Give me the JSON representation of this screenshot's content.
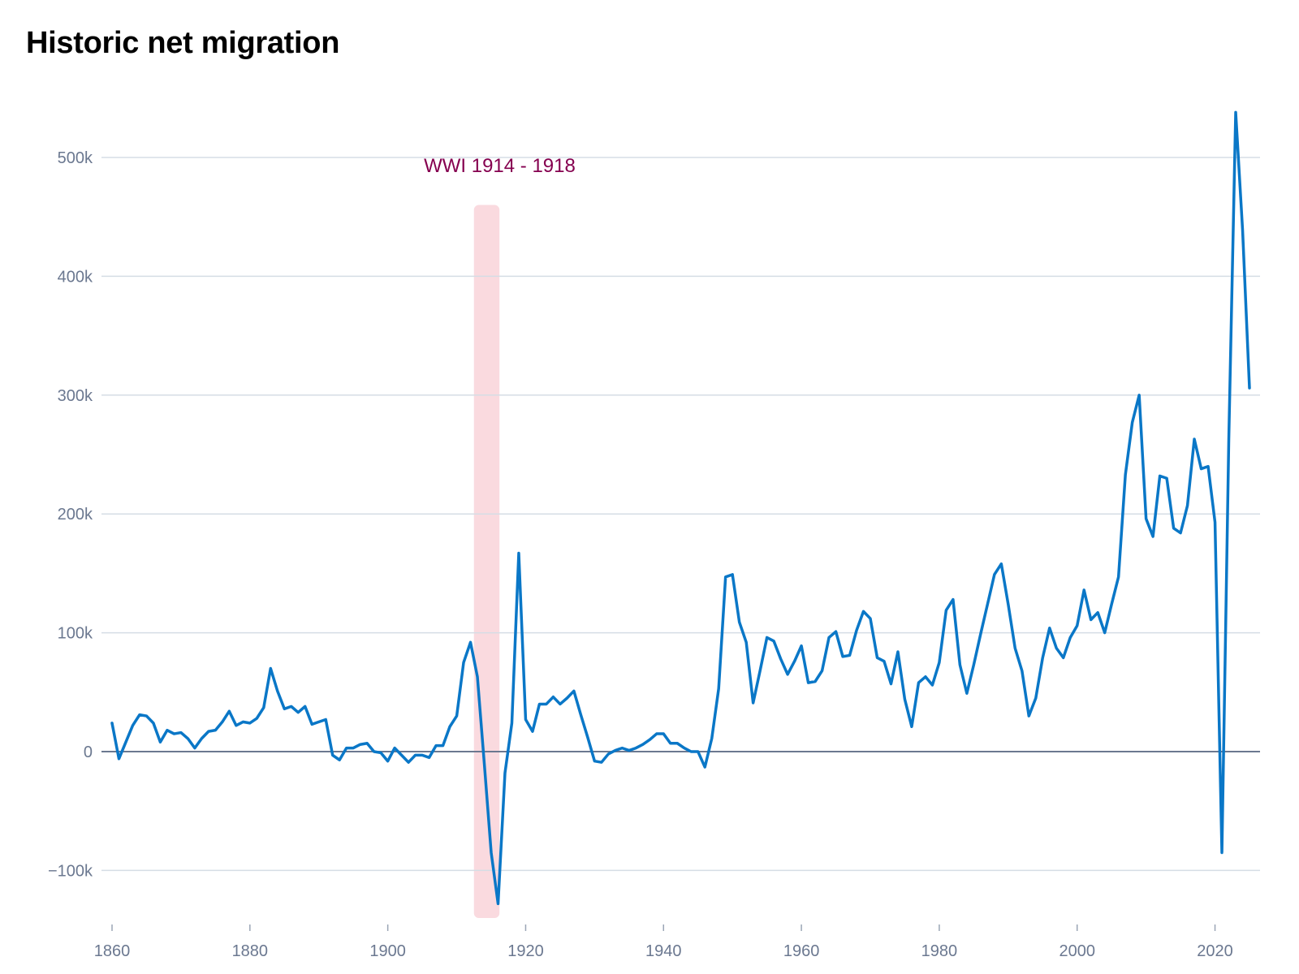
{
  "chart_data": {
    "type": "line",
    "title": "Historic net migration",
    "xlabel": "",
    "ylabel": "",
    "xlim": [
      1860,
      2025
    ],
    "ylim": [
      -140000,
      550000
    ],
    "x_ticks": [
      1860,
      1880,
      1900,
      1920,
      1940,
      1960,
      1980,
      2000,
      2020
    ],
    "y_ticks": [
      -100000,
      0,
      100000,
      200000,
      300000,
      400000,
      500000
    ],
    "y_tick_labels": [
      "−100k",
      "0",
      "100k",
      "200k",
      "300k",
      "400k",
      "500k"
    ],
    "grid": true,
    "legend": "none",
    "colors": {
      "line": "#0a77c7",
      "grid": "#d5dde5",
      "zero_line": "#6b7890",
      "shade": "#fadadf",
      "annotation": "#85004f"
    },
    "annotation": {
      "label": "WWI 1914 - 1918",
      "x_start": 1912.5,
      "x_end": 1916.2,
      "y_top": 460000,
      "y_bottom": -140000
    },
    "series": [
      {
        "x": [
          1860,
          1861,
          1862,
          1863,
          1864,
          1865,
          1866,
          1867,
          1868,
          1869,
          1870,
          1871,
          1872,
          1873,
          1874,
          1875,
          1876,
          1877,
          1878,
          1879,
          1880,
          1881,
          1882,
          1883,
          1884,
          1885,
          1886,
          1887,
          1888,
          1889,
          1890,
          1891,
          1892,
          1893,
          1894,
          1895,
          1896,
          1897,
          1898,
          1899,
          1900,
          1901,
          1902,
          1903,
          1904,
          1905,
          1906,
          1907,
          1908,
          1909,
          1910,
          1911,
          1912,
          1913,
          1914,
          1915,
          1916,
          1917,
          1918,
          1919,
          1920,
          1921,
          1922,
          1923,
          1924,
          1925,
          1926,
          1927,
          1928,
          1929,
          1930,
          1931,
          1932,
          1933,
          1934,
          1935,
          1936,
          1937,
          1938,
          1939,
          1940,
          1941,
          1942,
          1943,
          1944,
          1945,
          1946,
          1947,
          1948,
          1949,
          1950,
          1951,
          1952,
          1953,
          1954,
          1955,
          1956,
          1957,
          1958,
          1959,
          1960,
          1961,
          1962,
          1963,
          1964,
          1965,
          1966,
          1967,
          1968,
          1969,
          1970,
          1971,
          1972,
          1973,
          1974,
          1975,
          1976,
          1977,
          1978,
          1979,
          1980,
          1981,
          1982,
          1983,
          1984,
          1985,
          1986,
          1987,
          1988,
          1989,
          1990,
          1991,
          1992,
          1993,
          1994,
          1995,
          1996,
          1997,
          1998,
          1999,
          2000,
          2001,
          2002,
          2003,
          2004,
          2005,
          2006,
          2007,
          2008,
          2009,
          2010,
          2011,
          2012,
          2013,
          2014,
          2015,
          2016,
          2017,
          2018,
          2019,
          2020,
          2021,
          2022,
          2023,
          2024,
          2025
        ],
        "values": [
          24000,
          -6000,
          8000,
          22000,
          31000,
          30000,
          24000,
          8000,
          18000,
          15000,
          16000,
          11000,
          3000,
          11000,
          17000,
          18000,
          25000,
          34000,
          22000,
          25000,
          24000,
          28000,
          37000,
          70000,
          51000,
          36000,
          38000,
          33000,
          38000,
          23000,
          25000,
          27000,
          -3000,
          -7000,
          3000,
          3000,
          6000,
          7000,
          0,
          -1000,
          -8000,
          3000,
          -3000,
          -9000,
          -3000,
          -3000,
          -5000,
          5000,
          5000,
          21000,
          30000,
          75000,
          92000,
          63000,
          -10000,
          -85000,
          -128000,
          -18000,
          24000,
          167000,
          27000,
          17000,
          40000,
          40000,
          46000,
          40000,
          45000,
          51000,
          31000,
          12000,
          -8000,
          -9000,
          -2000,
          1000,
          3000,
          1000,
          3000,
          6000,
          10000,
          15000,
          15000,
          7000,
          7000,
          3000,
          0,
          0,
          -13000,
          11000,
          53000,
          147000,
          149000,
          109000,
          92000,
          41000,
          68000,
          96000,
          93000,
          78000,
          65000,
          76000,
          89000,
          58000,
          59000,
          68000,
          96000,
          101000,
          80000,
          81000,
          102000,
          118000,
          112000,
          79000,
          76000,
          57000,
          84000,
          44000,
          21000,
          58000,
          63000,
          56000,
          75000,
          119000,
          128000,
          73000,
          49000,
          73000,
          99000,
          124000,
          149000,
          158000,
          124000,
          87000,
          68000,
          30000,
          45000,
          79000,
          104000,
          87000,
          79000,
          96000,
          106000,
          136000,
          111000,
          117000,
          100000,
          124000,
          147000,
          233000,
          277000,
          300000,
          196000,
          181000,
          232000,
          230000,
          188000,
          184000,
          207000,
          263000,
          238000,
          240000,
          193000,
          -85000,
          263000,
          538000,
          439000,
          306000
        ]
      }
    ]
  }
}
